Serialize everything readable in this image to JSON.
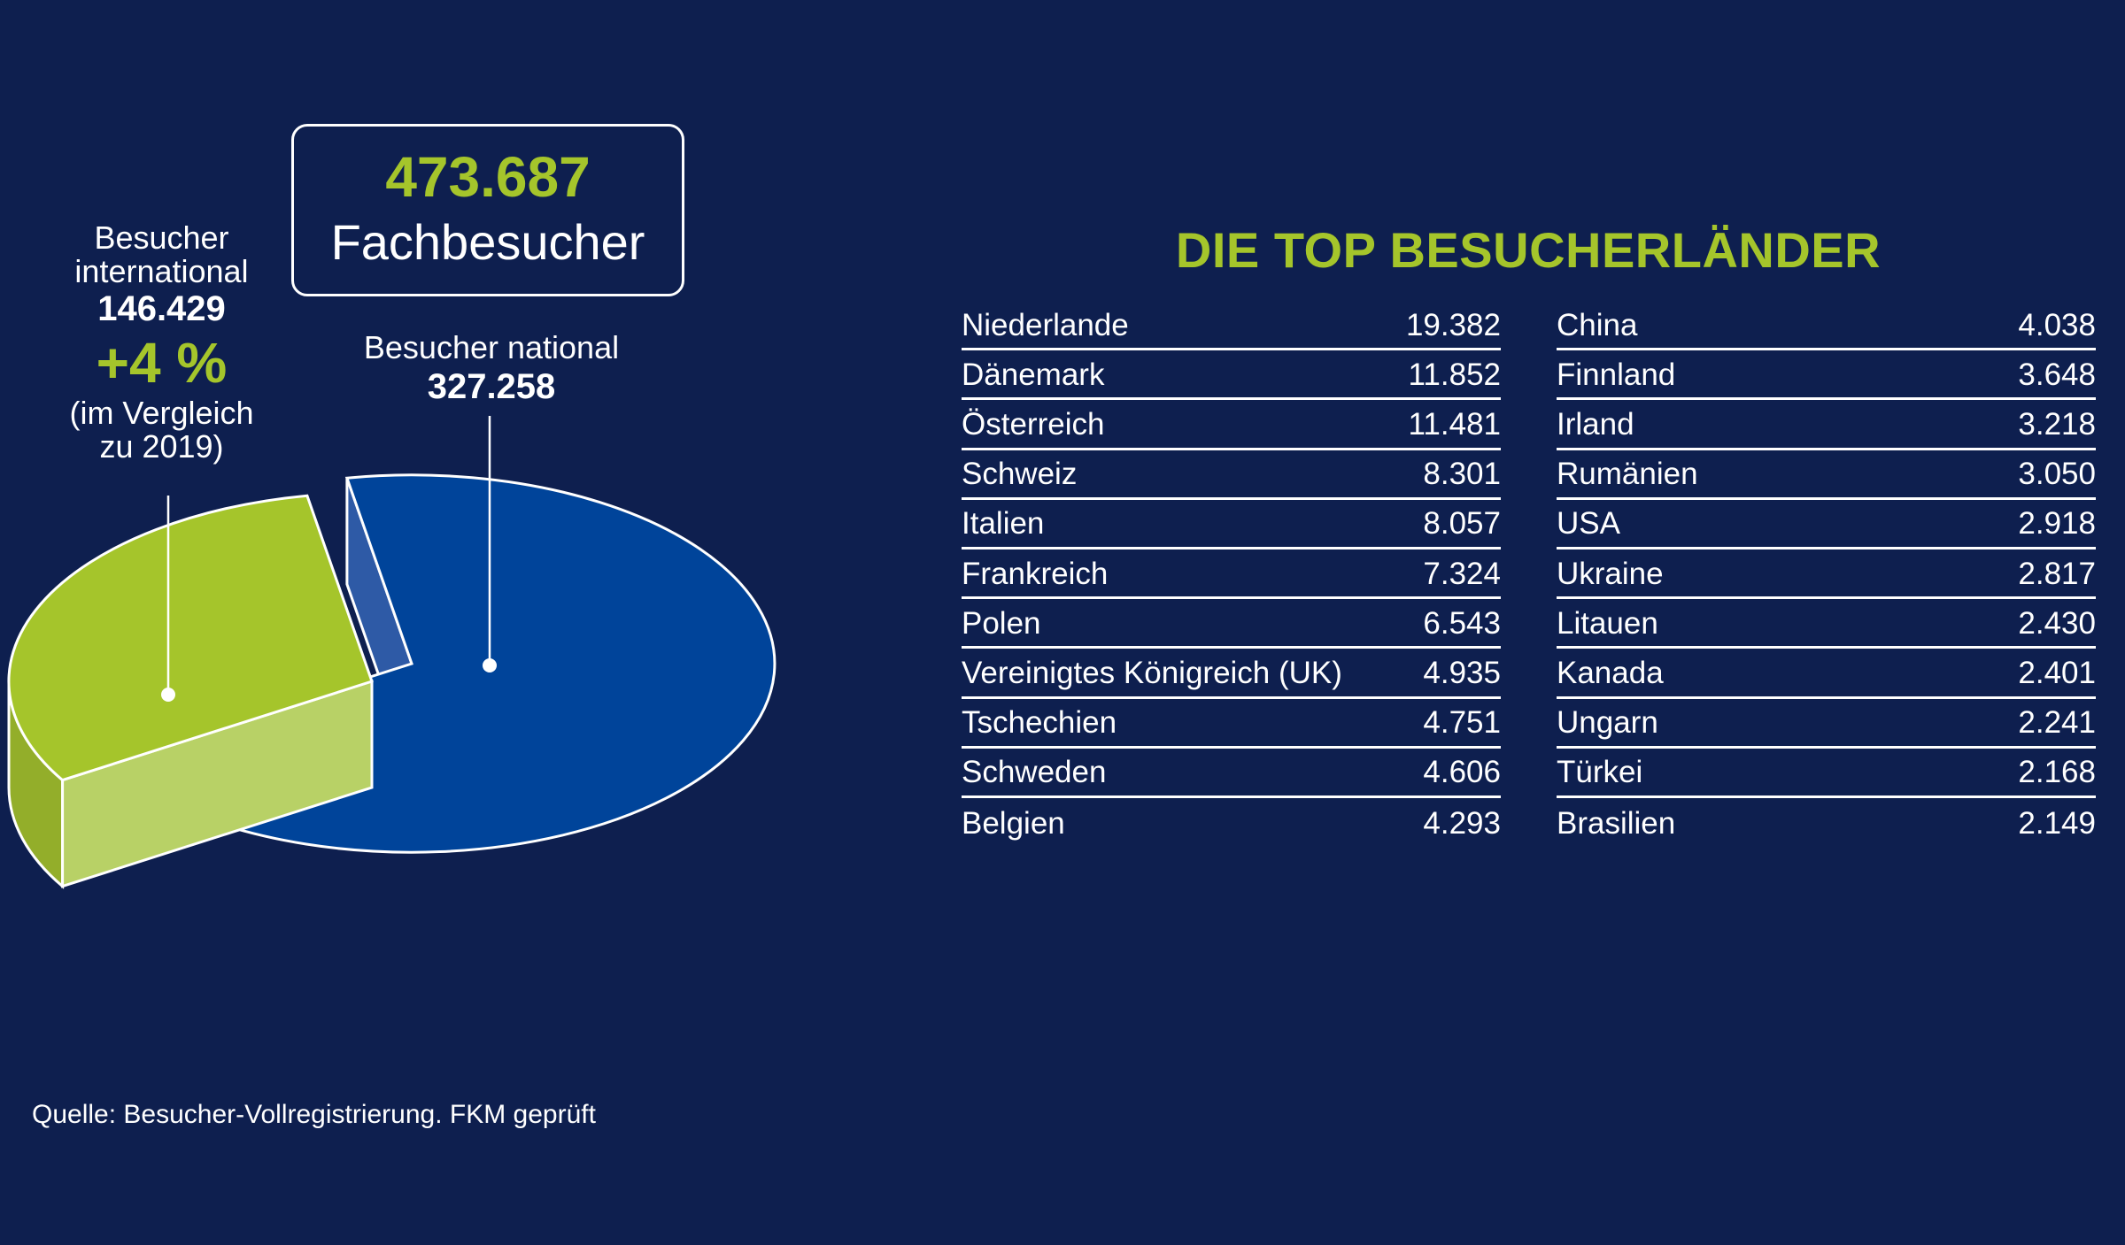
{
  "chart_data": {
    "type": "pie",
    "slices": [
      {
        "name": "Besucher national",
        "value": 327258,
        "color": "#00449a"
      },
      {
        "name": "Besucher international",
        "value": 146429,
        "color": "#a5c52b"
      }
    ]
  },
  "total": {
    "value": "473.687",
    "label": "Fachbesucher"
  },
  "international": {
    "label": "Besucher international",
    "value": "146.429",
    "change": "+4 %",
    "note_line1": "(im Vergleich",
    "note_line2": "zu 2019)"
  },
  "national": {
    "label": "Besucher national",
    "value": "327.258"
  },
  "countries_title": "DIE TOP BESUCHERLÄNDER",
  "countries_left": [
    {
      "name": "Niederlande",
      "value": "19.382"
    },
    {
      "name": "Dänemark",
      "value": "11.852"
    },
    {
      "name": "Österreich",
      "value": "11.481"
    },
    {
      "name": "Schweiz",
      "value": "8.301"
    },
    {
      "name": "Italien",
      "value": "8.057"
    },
    {
      "name": "Frankreich",
      "value": "7.324"
    },
    {
      "name": "Polen",
      "value": "6.543"
    },
    {
      "name": "Vereinigtes Königreich (UK)",
      "value": "4.935"
    },
    {
      "name": "Tschechien",
      "value": "4.751"
    },
    {
      "name": "Schweden",
      "value": "4.606"
    },
    {
      "name": "Belgien",
      "value": "4.293"
    }
  ],
  "countries_right": [
    {
      "name": "China",
      "value": "4.038"
    },
    {
      "name": "Finnland",
      "value": "3.648"
    },
    {
      "name": "Irland",
      "value": "3.218"
    },
    {
      "name": "Rumänien",
      "value": "3.050"
    },
    {
      "name": "USA",
      "value": "2.918"
    },
    {
      "name": "Ukraine",
      "value": "2.817"
    },
    {
      "name": "Litauen",
      "value": "2.430"
    },
    {
      "name": "Kanada",
      "value": "2.401"
    },
    {
      "name": "Ungarn",
      "value": "2.241"
    },
    {
      "name": "Türkei",
      "value": "2.168"
    },
    {
      "name": "Brasilien",
      "value": "2.149"
    }
  ],
  "source": "Quelle: Besucher-Vollregistrierung. FKM geprüft"
}
